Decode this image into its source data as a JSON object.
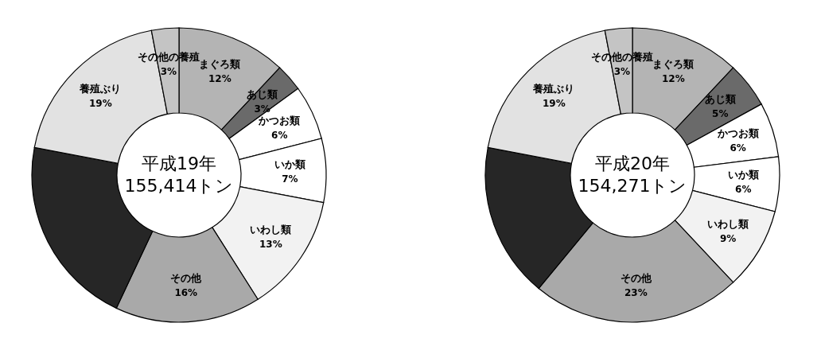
{
  "chart_data": [
    {
      "type": "donut",
      "title": "平成19年",
      "subtitle": "155,414トン",
      "categories": [
        "まぐろ類",
        "あじ類",
        "かつお類",
        "いか類",
        "いわし類",
        "その他",
        null,
        "養殖ぶり",
        "その他の養殖"
      ],
      "values": [
        12,
        3,
        6,
        7,
        13,
        16,
        21,
        19,
        3
      ],
      "value_labels": [
        "12%",
        "3%",
        "6%",
        "7%",
        "13%",
        "16%",
        null,
        "19%",
        "3%"
      ],
      "colors": [
        "#b4b4b4",
        "#6a6a6a",
        "#ffffff",
        "#ffffff",
        "#f2f2f2",
        "#a9a9a9",
        "#262626",
        "#e2e2e2",
        "#c4c4c4"
      ]
    },
    {
      "type": "donut",
      "title": "平成20年",
      "subtitle": "154,271トン",
      "categories": [
        "まぐろ類",
        "あじ類",
        "かつお類",
        "いか類",
        "いわし類",
        "その他",
        null,
        "養殖ぶり",
        "その他の養殖"
      ],
      "values": [
        12,
        5,
        6,
        6,
        9,
        23,
        17,
        19,
        3
      ],
      "value_labels": [
        "12%",
        "5%",
        "6%",
        "6%",
        "9%",
        "23%",
        null,
        "19%",
        "3%"
      ],
      "colors": [
        "#b4b4b4",
        "#6a6a6a",
        "#ffffff",
        "#ffffff",
        "#f2f2f2",
        "#a9a9a9",
        "#262626",
        "#e2e2e2",
        "#c4c4c4"
      ]
    }
  ]
}
